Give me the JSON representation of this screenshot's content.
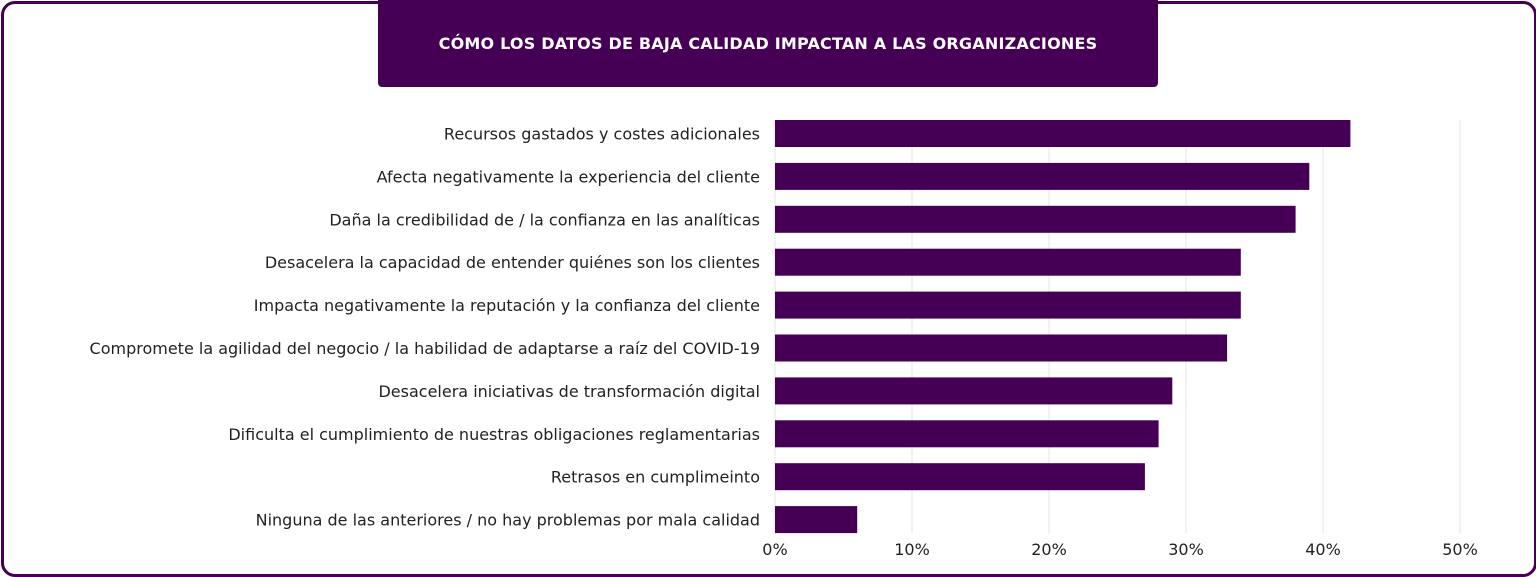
{
  "chart_data": {
    "type": "bar",
    "orientation": "horizontal",
    "title": "CÓMO LOS DATOS DE BAJA CALIDAD IMPACTAN A LAS ORGANIZACIONES",
    "categories": [
      "Recursos gastados y costes adicionales",
      "Afecta negativamente la experiencia del cliente",
      "Daña la credibilidad de / la confianza en las analíticas",
      "Desacelera la capacidad de entender quiénes son los clientes",
      "Impacta negativamente la reputación y la confianza del cliente",
      "Compromete la agilidad del negocio / la habilidad de adaptarse a raíz del COVID-19",
      "Desacelera iniciativas de transformación digital",
      "Dificulta el cumplimiento de nuestras obligaciones reglamentarias",
      "Retrasos en cumplimeinto",
      "Ninguna de las anteriores / no hay problemas por mala calidad"
    ],
    "values": [
      42,
      39,
      38,
      34,
      34,
      33,
      29,
      28,
      27,
      6
    ],
    "xlim": [
      0,
      50
    ],
    "xticks": [
      "0%",
      "10%",
      "20%",
      "30%",
      "40%",
      "50%"
    ],
    "xlabel": "",
    "ylabel": "",
    "grid": "vertical",
    "legend": "none",
    "colors": {
      "bar": "#450055",
      "title_bg": "#450055",
      "title_text": "#ffffff",
      "grid": "#e4e4e4",
      "frame": "#450055"
    }
  }
}
